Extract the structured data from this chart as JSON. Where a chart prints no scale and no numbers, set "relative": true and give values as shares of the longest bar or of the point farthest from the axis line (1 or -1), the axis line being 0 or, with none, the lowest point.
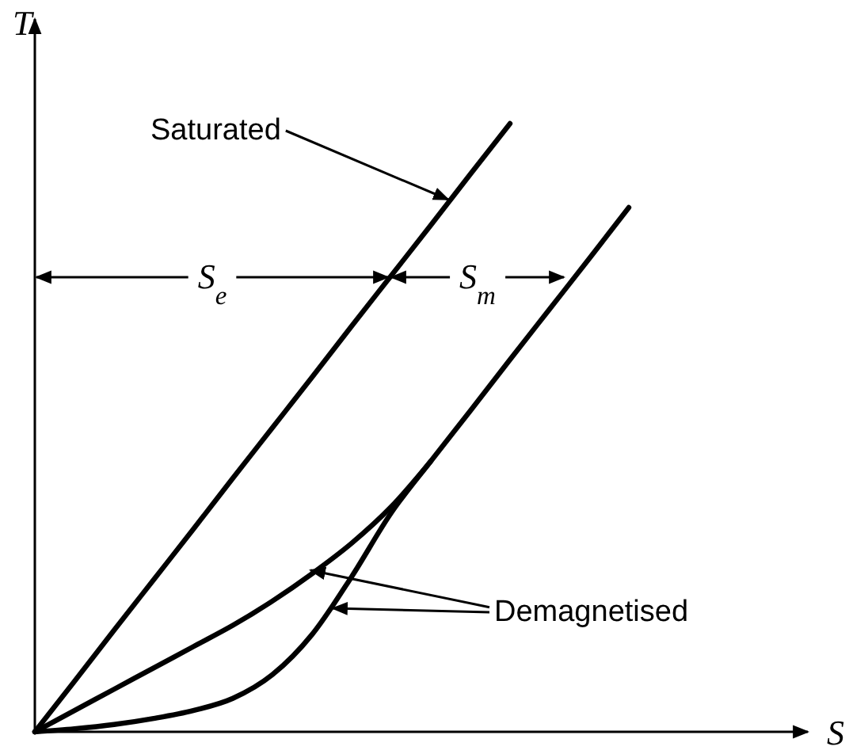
{
  "chart_data": {
    "type": "line",
    "relative": true,
    "ylabel": "T",
    "line_style": "solid",
    "categories": [
      null,
      null,
      null,
      null,
      null,
      null,
      null,
      null,
      null,
      null,
      null,
      null,
      null,
      null,
      null,
      null
    ],
    "series": [
      {
        "color": "#000000",
        "values": [
          0,
          0.083,
          0.167,
          0.25,
          0.333,
          0.417,
          0.5,
          0.583,
          0.667,
          0.75,
          0.833,
          0.917,
          1,
          null,
          null,
          null
        ]
      },
      {
        "color": "#000000",
        "values": [
          0,
          0.005,
          0.012,
          0.022,
          0.035,
          0.055,
          0.094,
          0.16,
          0.255,
          0.36,
          0.445,
          0.528,
          0.612,
          0.695,
          0.778,
          0.862
        ]
      },
      {
        "color": "#000000",
        "values": [
          0,
          0.035,
          0.07,
          0.105,
          0.14,
          0.175,
          0.215,
          0.26,
          0.31,
          0.37,
          0.445,
          null,
          null,
          null,
          null,
          null
        ]
      }
    ],
    "annotations": [
      "Saturated",
      "Demagnetised",
      "S$_{e}$",
      "S$_{m}$",
      "S"
    ]
  }
}
